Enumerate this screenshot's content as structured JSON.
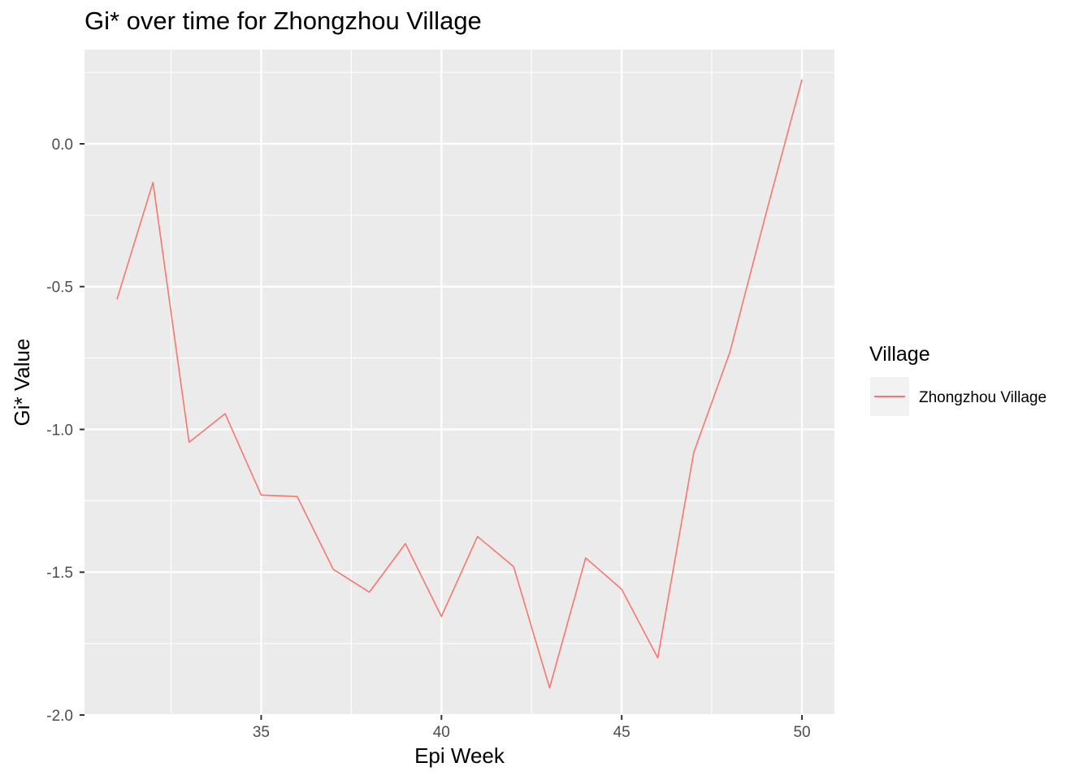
{
  "chart_data": {
    "type": "line",
    "title": "Gi* over time for Zhongzhou Village",
    "xlabel": "Epi Week",
    "ylabel": "Gi* Value",
    "xlim": [
      30.1,
      50.9
    ],
    "ylim": [
      -2.0,
      0.33
    ],
    "x_ticks": [
      35,
      40,
      45,
      50
    ],
    "y_ticks": [
      0.0,
      -0.5,
      -1.0,
      -1.5,
      -2.0
    ],
    "y_tick_labels": [
      "0.0",
      "-0.5",
      "-1.0",
      "-1.5",
      "-2.0"
    ],
    "grid": true,
    "legend": {
      "title": "Village",
      "placement": "right",
      "entries": [
        "Zhongzhou Village"
      ]
    },
    "series": [
      {
        "name": "Zhongzhou Village",
        "color": "#F8766D",
        "x": [
          31,
          32,
          33,
          34,
          35,
          36,
          37,
          38,
          39,
          40,
          41,
          42,
          43,
          44,
          45,
          46,
          47,
          48,
          49,
          50
        ],
        "values": [
          -0.545,
          -0.135,
          -1.045,
          -0.945,
          -1.23,
          -1.235,
          -1.49,
          -1.57,
          -1.4,
          -1.655,
          -1.375,
          -1.48,
          -1.905,
          -1.45,
          -1.56,
          -1.8,
          -1.08,
          -0.73,
          -0.245,
          0.225
        ]
      }
    ]
  }
}
